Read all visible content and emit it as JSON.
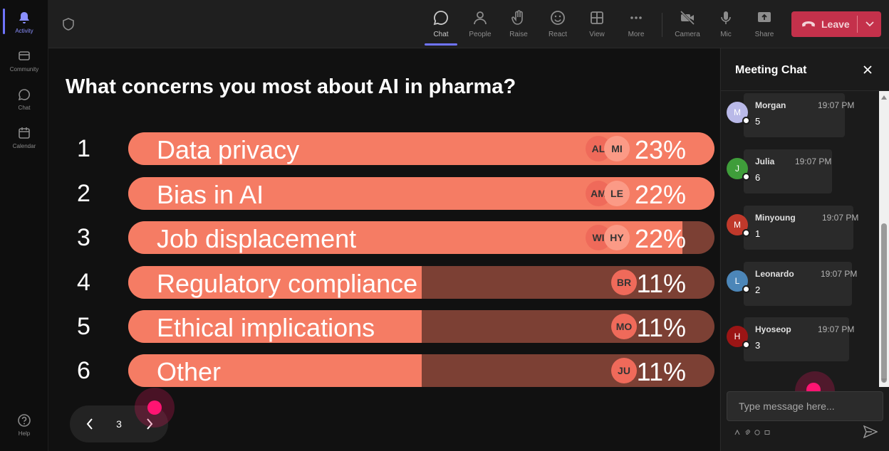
{
  "rail": {
    "items": [
      {
        "label": "Activity",
        "icon": "bell-icon",
        "active": true
      },
      {
        "label": "Community",
        "icon": "community-icon"
      },
      {
        "label": "Chat",
        "icon": "chat-icon"
      },
      {
        "label": "Calendar",
        "icon": "calendar-icon"
      }
    ],
    "help": {
      "label": "Help",
      "icon": "help-icon"
    }
  },
  "toolbar": {
    "buttons": [
      {
        "label": "Chat",
        "icon": "chat-icon",
        "active": true
      },
      {
        "label": "People",
        "icon": "people-icon"
      },
      {
        "label": "Raise",
        "icon": "hand-icon"
      },
      {
        "label": "React",
        "icon": "smile-icon"
      },
      {
        "label": "View",
        "icon": "grid-icon"
      },
      {
        "label": "More",
        "icon": "more-icon"
      }
    ],
    "devices": [
      {
        "label": "Camera",
        "icon": "camera-off-icon"
      },
      {
        "label": "Mic",
        "icon": "mic-icon"
      },
      {
        "label": "Share",
        "icon": "share-icon"
      }
    ],
    "leave_label": "Leave"
  },
  "poll": {
    "question": "What concerns you most about AI in pharma?",
    "options": [
      {
        "rank": "1",
        "label": "Data privacy",
        "percent_text": "23%",
        "percent": 23,
        "fill": 1.0,
        "avatars": [
          "AL",
          "MI"
        ]
      },
      {
        "rank": "2",
        "label": "Bias in AI",
        "percent_text": "22%",
        "percent": 22,
        "fill": 1.0,
        "avatars": [
          "AM",
          "LE"
        ]
      },
      {
        "rank": "3",
        "label": "Job displacement",
        "percent_text": "22%",
        "percent": 22,
        "fill": 0.945,
        "avatars": [
          "WI",
          "HY"
        ]
      },
      {
        "rank": "4",
        "label": "Regulatory compliance",
        "percent_text": "11%",
        "percent": 11,
        "fill": 0.5,
        "avatars": [
          "BR"
        ]
      },
      {
        "rank": "5",
        "label": "Ethical implications",
        "percent_text": "11%",
        "percent": 11,
        "fill": 0.5,
        "avatars": [
          "MO"
        ]
      },
      {
        "rank": "6",
        "label": "Other",
        "percent_text": "11%",
        "percent": 11,
        "fill": 0.5,
        "avatars": [
          "JU"
        ]
      }
    ],
    "page": "3"
  },
  "chat": {
    "title": "Meeting Chat",
    "messages": [
      {
        "initial": "M",
        "name": "Morgan",
        "time": "19:07 PM",
        "text": "5",
        "color": "#b9b9e8"
      },
      {
        "initial": "J",
        "name": "Julia",
        "time": "19:07 PM",
        "text": "6",
        "color": "#3f9d3a"
      },
      {
        "initial": "M",
        "name": "Minyoung",
        "time": "19:07 PM",
        "text": "1",
        "color": "#c0392b"
      },
      {
        "initial": "L",
        "name": "Leonardo",
        "time": "19:07 PM",
        "text": "2",
        "color": "#4c86b8"
      },
      {
        "initial": "H",
        "name": "Hyoseop",
        "time": "19:07 PM",
        "text": "3",
        "color": "#9b1515"
      }
    ],
    "placeholder": "Type message here..."
  },
  "colors": {
    "accent": "#6f74ff",
    "bar_fill": "#f57c64",
    "bar_track": "#7c4034",
    "leave": "#c4314b",
    "cursor": "#ff1472"
  }
}
